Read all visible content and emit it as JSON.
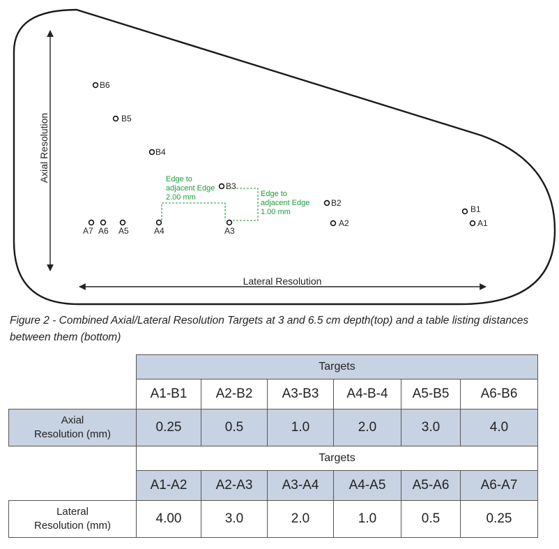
{
  "diagram": {
    "axial_label": "Axial Resolution",
    "lateral_label": "Lateral Resolution",
    "targets_a": [
      "A7",
      "A6",
      "A5",
      "A4",
      "A3",
      "A2",
      "A1"
    ],
    "targets_b": [
      "B6",
      "B5",
      "B4",
      "B3",
      "B2",
      "B1"
    ],
    "annotation_lateral": [
      "Edge to",
      "adjacent Edge",
      "2.00 mm"
    ],
    "annotation_axial": [
      "Edge to",
      "adjacent Edge",
      "1.00 mm"
    ],
    "annotation_color": "#1f9a3e"
  },
  "caption": "Figure 2 - Combined Axial/Lateral Resolution Targets at 3 and 6.5 cm depth(top) and a table listing distances between them (bottom)",
  "table": {
    "axial_section": {
      "header": "Targets",
      "pairs": [
        "A1-B1",
        "A2-B2",
        "A3-B3",
        "A4-B-4",
        "A5-B5",
        "A6-B6"
      ],
      "row_label_1": "Axial",
      "row_label_2": "Resolution (mm)",
      "values": [
        "0.25",
        "0.5",
        "1.0",
        "2.0",
        "3.0",
        "4.0"
      ]
    },
    "lateral_section": {
      "header": "Targets",
      "pairs": [
        "A1-A2",
        "A2-A3",
        "A3-A4",
        "A4-A5",
        "A5-A6",
        "A6-A7"
      ],
      "row_label_1": "Lateral",
      "row_label_2": "Resolution (mm)",
      "values": [
        "4.00",
        "3.0",
        "2.0",
        "1.0",
        "0.5",
        "0.25"
      ]
    },
    "highlight_color": "#c7d2e2"
  }
}
